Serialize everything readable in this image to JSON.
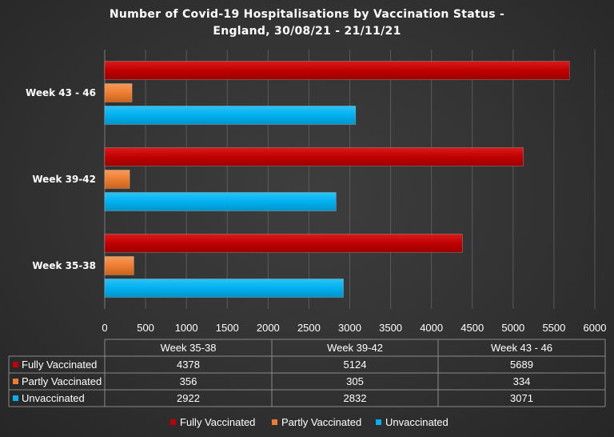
{
  "chart_data": {
    "type": "bar",
    "orientation": "horizontal",
    "title_line1": "Number of Covid-19 Hospitalisations by Vaccination Status -",
    "title_line2": "England, 30/08/21 - 21/11/21",
    "categories": [
      "Week 35-38",
      "Week 39-42",
      "Week 43 - 46"
    ],
    "axis_categories": [
      "Week 35-38",
      "Week 39-42",
      "Week 43 - 46"
    ],
    "table_headers": [
      "Week 35-38",
      "Week 39-42",
      "Week 43 - 46"
    ],
    "series": [
      {
        "name": "Fully Vaccinated",
        "values": [
          4378,
          5124,
          5689
        ],
        "color": "#c00000"
      },
      {
        "name": "Partly Vaccinated",
        "values": [
          356,
          305,
          334
        ],
        "color": "#ed7d31"
      },
      {
        "name": "Unvaccinated",
        "values": [
          2922,
          2832,
          3071
        ],
        "color": "#00b0f0"
      }
    ],
    "xlim": [
      0,
      6000
    ],
    "xticks": [
      "0",
      "500",
      "1000",
      "1500",
      "2000",
      "2500",
      "3000",
      "3500",
      "4000",
      "4500",
      "5000",
      "5500",
      "6000"
    ],
    "grid": true,
    "legend": "bottom",
    "data_table": true
  }
}
